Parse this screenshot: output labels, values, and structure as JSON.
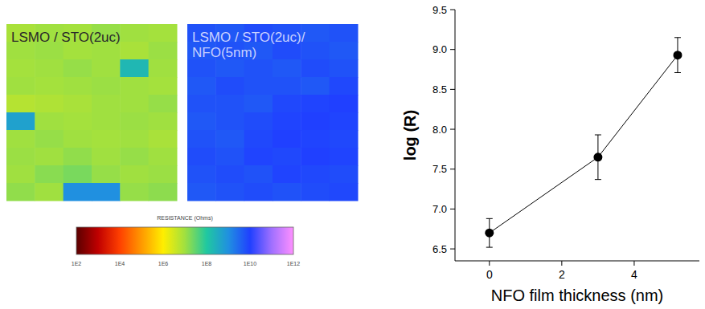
{
  "chart_data": [
    {
      "type": "heatmap",
      "log": true,
      "panels": [
        {
          "title": "LSMO / STO(2uc)",
          "cells": [
            [
              8000000.0,
              10000000.0,
              9000000.0,
              12000000.0,
              10000000.0,
              9000000.0
            ],
            [
              10000000.0,
              11000000.0,
              9000000.0,
              10000000.0,
              8000000.0,
              11000000.0
            ],
            [
              9000000.0,
              10000000.0,
              12000000.0,
              10000000.0,
              200000000.0,
              10000000.0
            ],
            [
              10000000.0,
              9000000.0,
              10000000.0,
              11000000.0,
              10000000.0,
              9000000.0
            ],
            [
              6000000.0,
              7000000.0,
              8000000.0,
              10000000.0,
              10000000.0,
              12000000.0
            ],
            [
              500000000.0,
              10000000.0,
              9000000.0,
              10000000.0,
              11000000.0,
              10000000.0
            ],
            [
              10000000.0,
              12000000.0,
              10000000.0,
              9000000.0,
              10000000.0,
              8000000.0
            ],
            [
              11000000.0,
              10000000.0,
              13000000.0,
              10000000.0,
              12000000.0,
              10000000.0
            ],
            [
              10000000.0,
              15000000.0,
              20000000.0,
              12000000.0,
              10000000.0,
              11000000.0
            ],
            [
              13000000.0,
              10000000.0,
              1000000000.0,
              1000000000.0,
              12000000.0,
              14000000.0
            ]
          ]
        },
        {
          "title": "LSMO / STO(2uc)/ NFO(5nm)",
          "cells": [
            [
              6000000000.0,
              5000000000.0,
              7000000000.0,
              6000000000.0,
              5000000000.0,
              6000000000.0
            ],
            [
              5000000000.0,
              6000000000.0,
              5000000000.0,
              7000000000.0,
              6000000000.0,
              5000000000.0
            ],
            [
              6000000000.0,
              5000000000.0,
              6000000000.0,
              5000000000.0,
              7000000000.0,
              6000000000.0
            ],
            [
              5000000000.0,
              7000000000.0,
              6000000000.0,
              6000000000.0,
              5000000000.0,
              8000000000.0
            ],
            [
              6000000000.0,
              6000000000.0,
              5000000000.0,
              8000000000.0,
              9000000000.0,
              10000000000.0
            ],
            [
              5000000000.0,
              6000000000.0,
              7000000000.0,
              9000000000.0,
              10000000000.0,
              9000000000.0
            ],
            [
              6000000000.0,
              5000000000.0,
              8000000000.0,
              10000000000.0,
              9000000000.0,
              8000000000.0
            ],
            [
              7000000000.0,
              6000000000.0,
              9000000000.0,
              8000000000.0,
              10000000000.0,
              9000000000.0
            ],
            [
              6000000000.0,
              7000000000.0,
              6000000000.0,
              9000000000.0,
              8000000000.0,
              7000000000.0
            ],
            [
              5000000000.0,
              6000000000.0,
              7000000000.0,
              6000000000.0,
              7000000000.0,
              8000000000.0
            ]
          ]
        }
      ],
      "colorbar": {
        "label": "RESISTANCE (Ohms)",
        "range": [
          100,
          1000000000000.0
        ],
        "ticks": [
          {
            "value": 100,
            "label": "1E2"
          },
          {
            "value": 10000,
            "label": "1E4"
          },
          {
            "value": 1000000,
            "label": "1E6"
          },
          {
            "value": 100000000,
            "label": "1E8"
          },
          {
            "value": 10000000000,
            "label": "1E10"
          },
          {
            "value": 1000000000000,
            "label": "1E12"
          }
        ]
      }
    },
    {
      "type": "line",
      "x": [
        0,
        3,
        5.2
      ],
      "series": [
        {
          "values": [
            6.7,
            7.65,
            8.93
          ],
          "errors": [
            0.18,
            0.28,
            0.22
          ],
          "color": "#000000",
          "marker": "circle",
          "line_style": "solid"
        }
      ],
      "xlabel": "NFO film thickness (nm)",
      "ylabel": "log (R)",
      "xlim": [
        -0.95,
        5.8
      ],
      "ylim": [
        6.35,
        9.5
      ],
      "xticks": [
        0,
        2,
        4
      ],
      "yticks": [
        6.5,
        {
          "value": 7,
          "label": "7.0"
        },
        7.5,
        {
          "value": 8,
          "label": "8.0"
        },
        8.5,
        {
          "value": 9,
          "label": "9.0"
        },
        9.5
      ],
      "grid": false
    }
  ]
}
